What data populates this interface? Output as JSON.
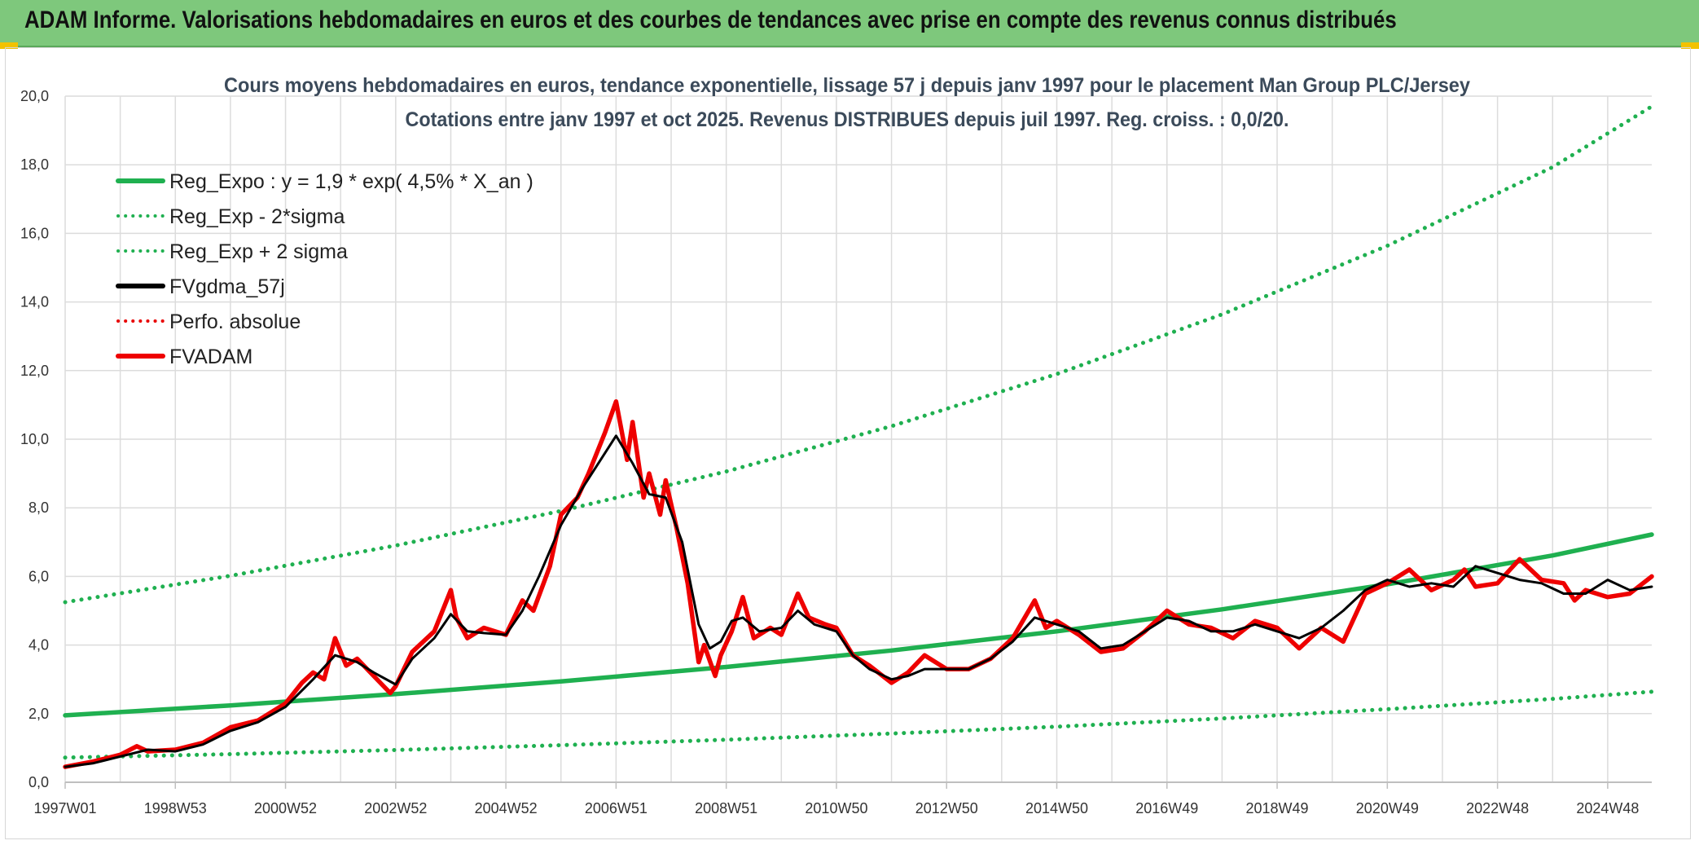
{
  "header": {
    "title": "ADAM Informe. Valorisations hebdomadaires en euros et des courbes de tendances avec prise en compte des revenus connus distribués"
  },
  "chart_data": {
    "type": "line",
    "title": "Cours moyens hebdomadaires en euros, tendance exponentielle, lissage 57 j depuis janv 1997 pour le placement Man Group PLC/Jersey",
    "subtitle": "Cotations entre janv 1997 et oct 2025. Revenus DISTRIBUES depuis juil 1997. Reg. croiss. : 0,0/20.",
    "xlabel": "",
    "ylabel": "",
    "ylim": [
      0,
      20
    ],
    "xlim": [
      1997.0,
      2025.8
    ],
    "grid": true,
    "legend_position": "top-left",
    "y_ticks": [
      "0,0",
      "2,0",
      "4,0",
      "6,0",
      "8,0",
      "10,0",
      "12,0",
      "14,0",
      "16,0",
      "18,0",
      "20,0"
    ],
    "x_ticks": [
      {
        "label": "1997W01",
        "x": 1997.0
      },
      {
        "label": "1998W53",
        "x": 1999.0
      },
      {
        "label": "2000W52",
        "x": 2001.0
      },
      {
        "label": "2002W52",
        "x": 2003.0
      },
      {
        "label": "2004W52",
        "x": 2005.0
      },
      {
        "label": "2006W51",
        "x": 2007.0
      },
      {
        "label": "2008W51",
        "x": 2009.0
      },
      {
        "label": "2010W50",
        "x": 2011.0
      },
      {
        "label": "2012W50",
        "x": 2013.0
      },
      {
        "label": "2014W50",
        "x": 2015.0
      },
      {
        "label": "2016W49",
        "x": 2017.0
      },
      {
        "label": "2018W49",
        "x": 2019.0
      },
      {
        "label": "2020W49",
        "x": 2021.0
      },
      {
        "label": "2022W48",
        "x": 2023.0
      },
      {
        "label": "2024W48",
        "x": 2025.0
      }
    ],
    "series": [
      {
        "name": "Reg_Expo : y = 1,9 * exp( 4,5% *  X_an )",
        "color": "#1fb050",
        "style": "solid",
        "x": [
          1997.0,
          2000.0,
          2003.0,
          2006.0,
          2009.0,
          2012.0,
          2015.0,
          2018.0,
          2021.0,
          2024.0,
          2025.8
        ],
        "values": [
          1.95,
          2.24,
          2.57,
          2.94,
          3.36,
          3.84,
          4.4,
          5.04,
          5.77,
          6.61,
          7.22
        ]
      },
      {
        "name": "Reg_Exp - 2*sigma",
        "color": "#1fb050",
        "style": "dotted",
        "x": [
          1997.0,
          2000.0,
          2003.0,
          2006.0,
          2009.0,
          2012.0,
          2015.0,
          2018.0,
          2021.0,
          2024.0,
          2025.8
        ],
        "values": [
          0.72,
          0.82,
          0.94,
          1.08,
          1.24,
          1.42,
          1.62,
          1.86,
          2.13,
          2.43,
          2.64
        ]
      },
      {
        "name": "Reg_Exp + 2 sigma",
        "color": "#1fb050",
        "style": "dotted",
        "x": [
          1997.0,
          2000.0,
          2003.0,
          2006.0,
          2009.0,
          2012.0,
          2015.0,
          2018.0,
          2021.0,
          2024.0,
          2025.8
        ],
        "values": [
          5.25,
          6.02,
          6.9,
          7.91,
          9.06,
          10.38,
          11.9,
          13.64,
          15.64,
          17.93,
          19.7
        ]
      },
      {
        "name": "FVgdma_57j",
        "color": "#000000",
        "style": "solid",
        "x": [
          1997.0,
          1997.5,
          1998.0,
          1998.5,
          1999.0,
          1999.5,
          2000.0,
          2000.5,
          2001.0,
          2001.5,
          2001.9,
          2002.3,
          2002.6,
          2003.0,
          2003.3,
          2003.7,
          2004.0,
          2004.3,
          2004.6,
          2005.0,
          2005.3,
          2005.6,
          2006.0,
          2006.4,
          2006.8,
          2007.0,
          2007.3,
          2007.6,
          2007.9,
          2008.2,
          2008.5,
          2008.7,
          2008.9,
          2009.1,
          2009.3,
          2009.6,
          2010.0,
          2010.3,
          2010.6,
          2011.0,
          2011.3,
          2011.6,
          2012.0,
          2012.3,
          2012.6,
          2013.0,
          2013.4,
          2013.8,
          2014.2,
          2014.6,
          2015.0,
          2015.4,
          2015.8,
          2016.2,
          2016.6,
          2017.0,
          2017.4,
          2017.8,
          2018.2,
          2018.6,
          2019.0,
          2019.4,
          2019.8,
          2020.2,
          2020.6,
          2021.0,
          2021.4,
          2021.8,
          2022.2,
          2022.6,
          2023.0,
          2023.4,
          2023.8,
          2024.2,
          2024.6,
          2025.0,
          2025.4,
          2025.8
        ],
        "values": [
          0.45,
          0.55,
          0.75,
          0.95,
          0.9,
          1.1,
          1.5,
          1.75,
          2.2,
          3.0,
          3.7,
          3.5,
          3.2,
          2.85,
          3.6,
          4.2,
          4.9,
          4.4,
          4.35,
          4.3,
          5.0,
          6.0,
          7.5,
          8.6,
          9.6,
          10.1,
          9.3,
          8.4,
          8.3,
          7.0,
          4.6,
          3.9,
          4.1,
          4.7,
          4.8,
          4.4,
          4.5,
          5.0,
          4.6,
          4.4,
          3.7,
          3.3,
          3.0,
          3.1,
          3.3,
          3.3,
          3.3,
          3.6,
          4.1,
          4.8,
          4.6,
          4.4,
          3.9,
          4.0,
          4.4,
          4.8,
          4.7,
          4.4,
          4.4,
          4.6,
          4.4,
          4.2,
          4.5,
          5.0,
          5.6,
          5.9,
          5.7,
          5.8,
          5.7,
          6.3,
          6.1,
          5.9,
          5.8,
          5.5,
          5.5,
          5.9,
          5.6,
          5.7
        ]
      },
      {
        "name": "Perfo. absolue",
        "color": "#e80000",
        "style": "dotted",
        "x": [],
        "values": []
      },
      {
        "name": "FVADAM",
        "color": "#ee0000",
        "style": "solid",
        "x": [
          1997.0,
          1997.5,
          1998.0,
          1998.3,
          1998.5,
          1999.0,
          1999.5,
          2000.0,
          2000.5,
          2001.0,
          2001.3,
          2001.5,
          2001.7,
          2001.9,
          2002.1,
          2002.3,
          2002.6,
          2002.9,
          2003.0,
          2003.3,
          2003.7,
          2004.0,
          2004.1,
          2004.3,
          2004.6,
          2005.0,
          2005.3,
          2005.5,
          2005.8,
          2006.0,
          2006.3,
          2006.5,
          2006.8,
          2007.0,
          2007.2,
          2007.3,
          2007.5,
          2007.6,
          2007.8,
          2007.9,
          2008.1,
          2008.3,
          2008.5,
          2008.6,
          2008.8,
          2008.9,
          2009.1,
          2009.3,
          2009.5,
          2009.8,
          2010.0,
          2010.3,
          2010.5,
          2010.8,
          2011.0,
          2011.3,
          2011.6,
          2012.0,
          2012.3,
          2012.6,
          2013.0,
          2013.4,
          2013.8,
          2014.2,
          2014.6,
          2014.8,
          2015.0,
          2015.4,
          2015.8,
          2016.2,
          2016.6,
          2017.0,
          2017.4,
          2017.8,
          2018.2,
          2018.6,
          2019.0,
          2019.4,
          2019.8,
          2020.2,
          2020.6,
          2021.0,
          2021.4,
          2021.8,
          2022.2,
          2022.4,
          2022.6,
          2023.0,
          2023.4,
          2023.8,
          2024.2,
          2024.4,
          2024.6,
          2025.0,
          2025.4,
          2025.8
        ],
        "values": [
          0.45,
          0.6,
          0.8,
          1.05,
          0.9,
          0.95,
          1.15,
          1.6,
          1.8,
          2.3,
          2.9,
          3.2,
          3.0,
          4.2,
          3.4,
          3.6,
          3.1,
          2.6,
          2.8,
          3.8,
          4.4,
          5.6,
          4.8,
          4.2,
          4.5,
          4.3,
          5.3,
          5.0,
          6.3,
          7.8,
          8.3,
          9.0,
          10.2,
          11.1,
          9.4,
          10.5,
          8.3,
          9.0,
          7.8,
          8.8,
          7.4,
          5.8,
          3.5,
          4.0,
          3.1,
          3.7,
          4.4,
          5.4,
          4.2,
          4.5,
          4.3,
          5.5,
          4.8,
          4.6,
          4.5,
          3.7,
          3.4,
          2.9,
          3.2,
          3.7,
          3.3,
          3.3,
          3.6,
          4.2,
          5.3,
          4.5,
          4.7,
          4.3,
          3.8,
          3.9,
          4.4,
          5.0,
          4.6,
          4.5,
          4.2,
          4.7,
          4.5,
          3.9,
          4.5,
          4.1,
          5.5,
          5.8,
          6.2,
          5.6,
          5.9,
          6.2,
          5.7,
          5.8,
          6.5,
          5.9,
          5.8,
          5.3,
          5.6,
          5.4,
          5.5,
          6.0
        ]
      }
    ]
  }
}
